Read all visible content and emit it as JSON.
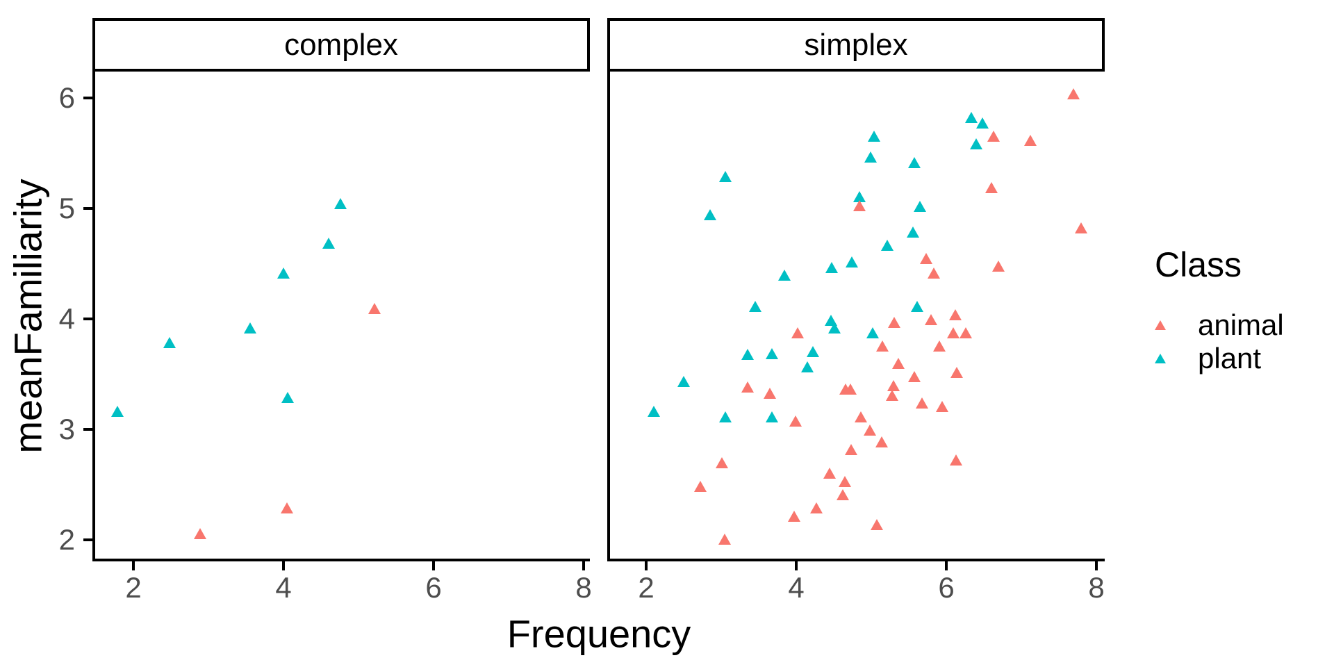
{
  "figure": {
    "x_axis_title": "Frequency",
    "y_axis_title": "meanFamiliarity"
  },
  "facets": [
    {
      "label": "complex"
    },
    {
      "label": "simplex"
    }
  ],
  "legend": {
    "title": "Class",
    "items": [
      {
        "label": "animal",
        "color": "#F8766D"
      },
      {
        "label": "plant",
        "color": "#00BFC4"
      }
    ]
  },
  "colors": {
    "animal": "#F8766D",
    "plant": "#00BFC4",
    "axis_text": "#4d4d4d",
    "axis_line": "#000000"
  },
  "chart_data": {
    "type": "scatter",
    "marker": "filled-triangle",
    "title": "",
    "xlabel": "Frequency",
    "ylabel": "meanFamiliarity",
    "facet_labels": [
      "complex",
      "simplex"
    ],
    "x_ticks": [
      2,
      4,
      6,
      8
    ],
    "y_ticks": [
      2,
      3,
      4,
      5,
      6
    ],
    "xlim": [
      1.5,
      8.1
    ],
    "ylim": [
      1.8,
      6.25
    ],
    "grid": false,
    "legend_position": "right",
    "series": [
      {
        "name": "plant",
        "facet": "complex",
        "color": "#00BFC4",
        "points": [
          [
            4.76,
            5.04
          ],
          [
            4.6,
            4.68
          ],
          [
            4.0,
            4.41
          ],
          [
            3.56,
            3.91
          ],
          [
            2.48,
            3.78
          ],
          [
            4.06,
            3.28
          ],
          [
            1.79,
            3.16
          ]
        ]
      },
      {
        "name": "animal",
        "facet": "complex",
        "color": "#F8766D",
        "points": [
          [
            5.21,
            4.09
          ],
          [
            4.05,
            2.28
          ],
          [
            2.89,
            2.05
          ]
        ]
      },
      {
        "name": "plant",
        "facet": "simplex",
        "color": "#00BFC4",
        "points": [
          [
            3.06,
            5.28
          ],
          [
            2.85,
            4.94
          ],
          [
            4.84,
            5.1
          ],
          [
            4.99,
            5.46
          ],
          [
            5.04,
            5.65
          ],
          [
            5.57,
            5.41
          ],
          [
            6.33,
            5.82
          ],
          [
            6.48,
            5.77
          ],
          [
            6.4,
            5.58
          ],
          [
            5.65,
            5.01
          ],
          [
            5.56,
            4.78
          ],
          [
            5.21,
            4.66
          ],
          [
            4.74,
            4.51
          ],
          [
            4.47,
            4.46
          ],
          [
            3.84,
            4.39
          ],
          [
            3.45,
            4.11
          ],
          [
            5.61,
            4.11
          ],
          [
            4.46,
            3.98
          ],
          [
            4.51,
            3.91
          ],
          [
            5.02,
            3.87
          ],
          [
            4.22,
            3.7
          ],
          [
            3.68,
            3.68
          ],
          [
            3.35,
            3.67
          ],
          [
            4.15,
            3.56
          ],
          [
            2.5,
            3.43
          ],
          [
            2.1,
            3.16
          ],
          [
            3.06,
            3.11
          ],
          [
            3.68,
            3.11
          ]
        ]
      },
      {
        "name": "animal",
        "facet": "simplex",
        "color": "#F8766D",
        "points": [
          [
            7.69,
            6.03
          ],
          [
            6.63,
            5.65
          ],
          [
            7.12,
            5.61
          ],
          [
            6.6,
            5.18
          ],
          [
            4.84,
            5.02
          ],
          [
            7.8,
            4.82
          ],
          [
            5.73,
            4.54
          ],
          [
            6.69,
            4.47
          ],
          [
            5.83,
            4.41
          ],
          [
            6.12,
            4.03
          ],
          [
            5.8,
            3.99
          ],
          [
            5.31,
            3.96
          ],
          [
            4.02,
            3.87
          ],
          [
            6.09,
            3.87
          ],
          [
            6.26,
            3.87
          ],
          [
            5.15,
            3.75
          ],
          [
            5.91,
            3.75
          ],
          [
            5.36,
            3.59
          ],
          [
            5.57,
            3.47
          ],
          [
            6.14,
            3.51
          ],
          [
            5.3,
            3.39
          ],
          [
            3.35,
            3.38
          ],
          [
            4.66,
            3.36
          ],
          [
            4.72,
            3.36
          ],
          [
            3.65,
            3.32
          ],
          [
            5.28,
            3.3
          ],
          [
            5.68,
            3.23
          ],
          [
            5.94,
            3.2
          ],
          [
            4.86,
            3.11
          ],
          [
            3.99,
            3.07
          ],
          [
            4.98,
            2.99
          ],
          [
            5.14,
            2.88
          ],
          [
            4.73,
            2.81
          ],
          [
            6.13,
            2.72
          ],
          [
            3.01,
            2.69
          ],
          [
            2.72,
            2.48
          ],
          [
            4.44,
            2.6
          ],
          [
            4.65,
            2.52
          ],
          [
            4.62,
            2.4
          ],
          [
            4.27,
            2.28
          ],
          [
            3.97,
            2.21
          ],
          [
            5.07,
            2.13
          ],
          [
            3.05,
            2.0
          ]
        ]
      }
    ]
  }
}
